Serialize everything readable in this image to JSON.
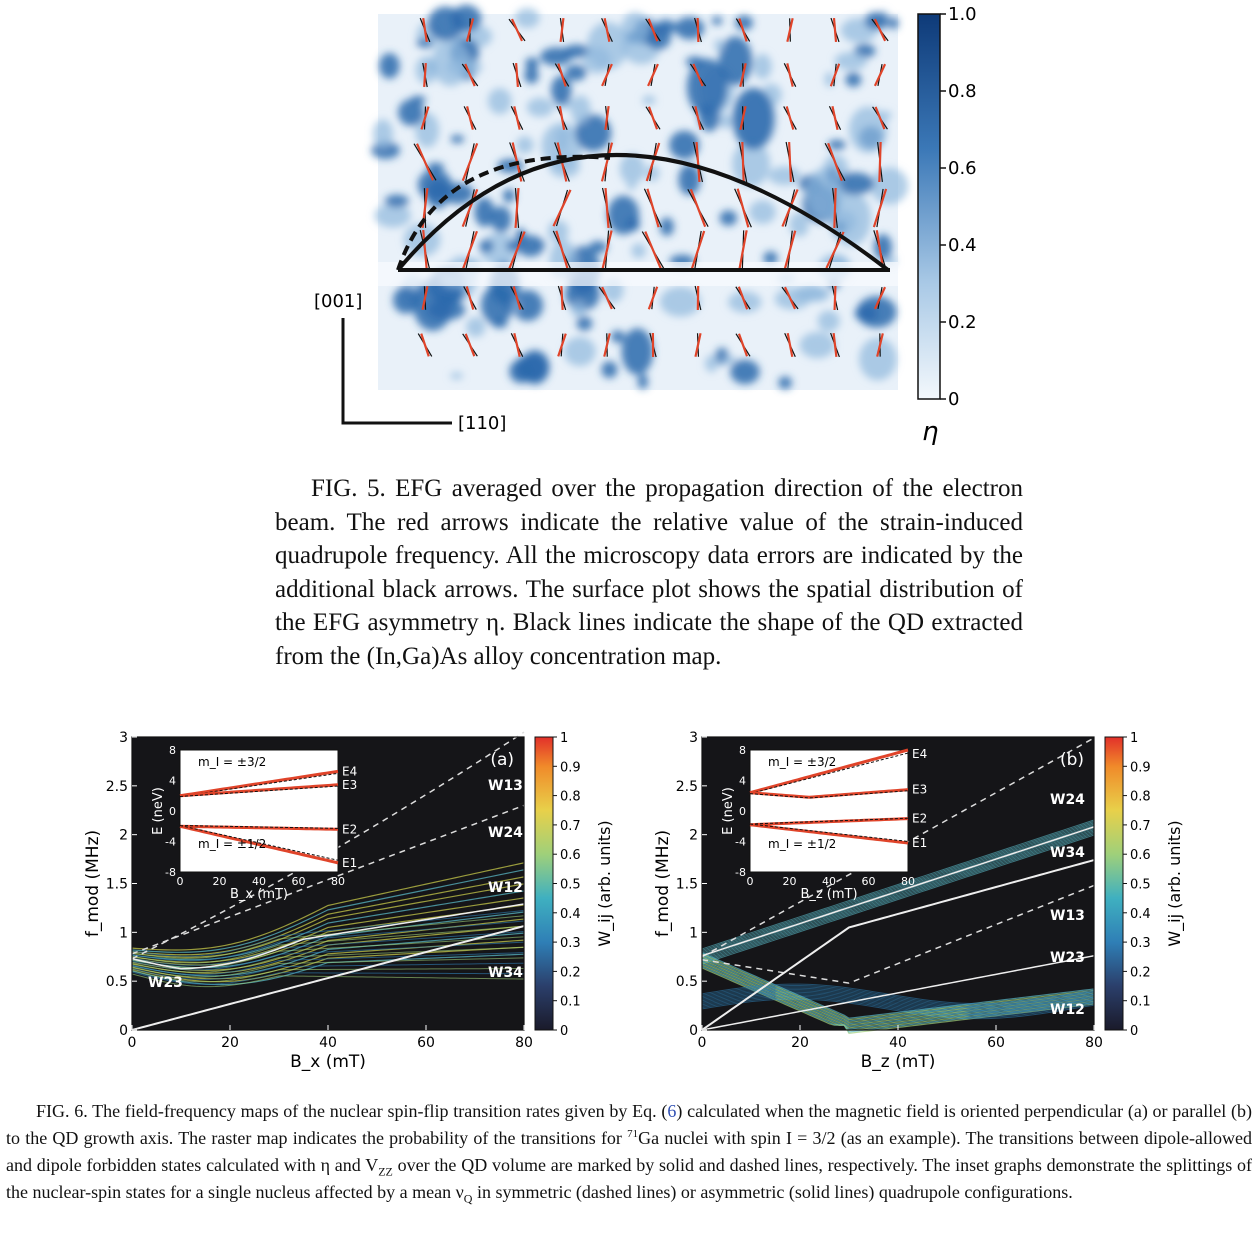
{
  "fig5": {
    "colorbar_ticks": [
      "1.0",
      "0.8",
      "0.6",
      "0.4",
      "0.2",
      "0"
    ],
    "colorbar_label": "η",
    "axis_vertical": "[001]",
    "axis_horizontal": "[110]",
    "colors": {
      "map_dark": "#1b4f8f",
      "map_light": "#eef4fa",
      "arrow_red": "#e0442a"
    },
    "caption": "FIG. 5. EFG averaged over the propagation direction of the electron beam. The red arrows indicate the relative value of the strain-induced quadrupole frequency. All the microscopy data errors are indicated by the additional black arrows. The surface plot shows the spatial distribution of the EFG asymmetry η. Black lines indicate the shape of the QD extracted from the (In,Ga)As alloy concentration map."
  },
  "fig6": {
    "panel_a": {
      "tag": "(a)",
      "x_label": "B_x (mT)",
      "y_label": "f_mod (MHz)",
      "x_ticks": [
        "0",
        "20",
        "40",
        "60",
        "80"
      ],
      "y_ticks": [
        "0",
        "0.5",
        "1",
        "1.5",
        "2",
        "2.5",
        "3"
      ],
      "line_labels": [
        "W13",
        "W24",
        "W12",
        "W34",
        "W23"
      ],
      "inset": {
        "x_label": "B_x (mT)",
        "y_label": "E (neV)",
        "x_ticks": [
          "0",
          "20",
          "40",
          "60",
          "80"
        ],
        "y_ticks": [
          "8",
          "4",
          "0",
          "-4",
          "-8"
        ],
        "state_labels": [
          "E4",
          "E3",
          "E2",
          "E1"
        ],
        "m_top": "m_I = ±3/2",
        "m_bottom": "m_I = ±1/2"
      }
    },
    "panel_b": {
      "tag": "(b)",
      "x_label": "B_z (mT)",
      "y_label": "f_mod (MHz)",
      "x_ticks": [
        "0",
        "20",
        "40",
        "60",
        "80"
      ],
      "y_ticks": [
        "0",
        "0.5",
        "1",
        "1.5",
        "2",
        "2.5",
        "3"
      ],
      "line_labels": [
        "W24",
        "W34",
        "W13",
        "W23",
        "W12"
      ],
      "inset": {
        "x_label": "B_z (mT)",
        "y_label": "E (neV)",
        "x_ticks": [
          "0",
          "20",
          "40",
          "60",
          "80"
        ],
        "y_ticks": [
          "8",
          "4",
          "0",
          "-4",
          "-8"
        ],
        "state_labels": [
          "E4",
          "E3",
          "E2",
          "E1"
        ],
        "m_top": "m_I = ±3/2",
        "m_bottom": "m_I = ±1/2"
      }
    },
    "colorbar_ticks": [
      "1",
      "0.9",
      "0.8",
      "0.7",
      "0.6",
      "0.5",
      "0.4",
      "0.3",
      "0.2",
      "0.1",
      "0"
    ],
    "colorbar_label": "W_ij (arb. units)",
    "caption_label": "FIG. 6.",
    "caption_part1": "The field-frequency maps of the nuclear spin-flip transition rates given by Eq. (",
    "caption_eq": "6",
    "caption_part2": ") calculated when the magnetic field is oriented perpendicular (a) or parallel (b) to the QD growth axis. The raster map indicates the probability of the transitions for ",
    "caption_isotope": "71",
    "caption_part3": "Ga nuclei with spin I = 3/2 (as an example). The transitions between dipole-allowed and dipole forbidden states calculated with η and V",
    "caption_sub": "ZZ",
    "caption_part4": " over the QD volume are marked by solid and dashed lines, respectively. The inset graphs demonstrate the splittings of the nuclear-spin states for a single nucleus affected by a mean ν",
    "caption_sub2": "Q",
    "caption_part5": " in symmetric (dashed lines) or asymmetric (solid lines) quadrupole configurations."
  }
}
